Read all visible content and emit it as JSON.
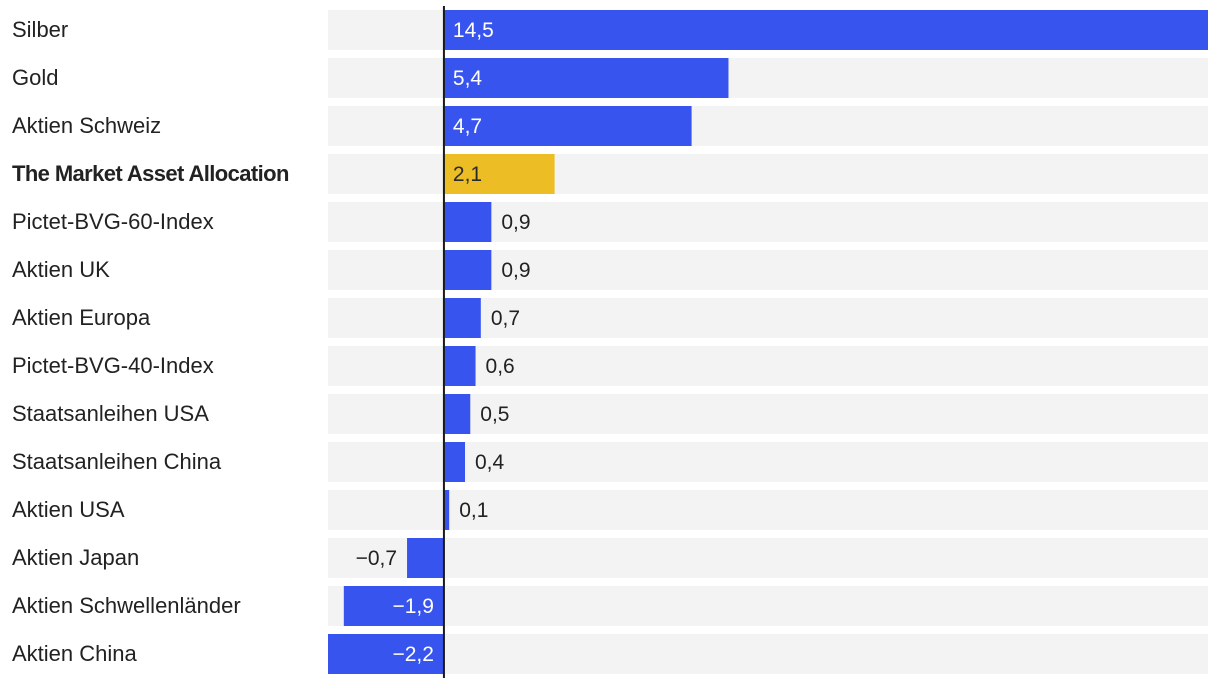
{
  "chart_data": {
    "type": "bar",
    "orientation": "horizontal",
    "title": "",
    "xlabel": "",
    "ylabel": "",
    "xlim": [
      -2.2,
      14.5
    ],
    "grid": false,
    "legend": "none",
    "categories": [
      "Silber",
      "Gold",
      "Aktien Schweiz",
      "The Market Asset Allocation",
      "Pictet-BVG-60-Index",
      "Aktien UK",
      "Aktien Europa",
      "Pictet-BVG-40-Index",
      "Staatsanleihen USA",
      "Staatsanleihen China",
      "Aktien USA",
      "Aktien Japan",
      "Aktien Schwellenländer",
      "Aktien China"
    ],
    "values": [
      14.5,
      5.4,
      4.7,
      2.1,
      0.9,
      0.9,
      0.7,
      0.6,
      0.5,
      0.4,
      0.1,
      -0.7,
      -1.9,
      -2.2
    ],
    "labels": [
      "14,5",
      "5,4",
      "4,7",
      "2,1",
      "0,9",
      "0,9",
      "0,7",
      "0,6",
      "0,5",
      "0,4",
      "0,1",
      "−0,7",
      "−1,9",
      "−2,2"
    ],
    "highlight": "The Market Asset Allocation"
  },
  "colors": {
    "bar": "#3854ee",
    "highlight": "#ecbd24",
    "row_background": "#f3f3f3",
    "axis": "#1a1a1a",
    "text": "#222222"
  }
}
